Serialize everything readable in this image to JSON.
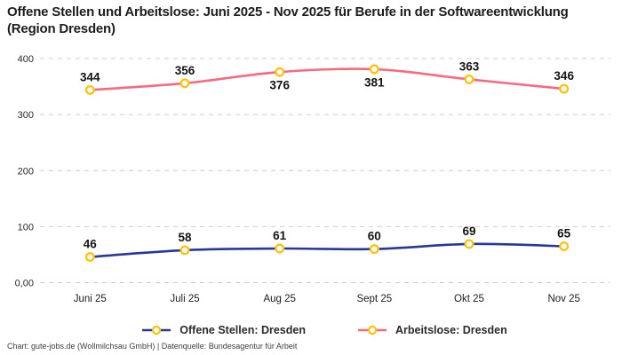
{
  "title": "Offene Stellen und Arbeitslose: Juni 2025 - Nov 2025 für Berufe in der Softwareentwicklung (Region Dresden)",
  "footer": "Chart: gute-jobs.de (Wollmilchsau GmbH) | Datenquelle: Bundesagentur für Arbeit",
  "colors": {
    "background": "#ffffff",
    "title_text": "#1d1d1d",
    "grid": "#cccccc",
    "axis_text": "#2b2b2b",
    "data_label_text": "#141414",
    "marker_stroke": "#fdc30a",
    "marker_fill": "#ffffff",
    "footer_text": "#3e3e3e"
  },
  "chart_data": {
    "type": "line",
    "title": "Offene Stellen und Arbeitslose: Juni 2025 - Nov 2025 für Berufe in der Softwareentwicklung (Region Dresden)",
    "categories": [
      "Juni 25",
      "Juli 25",
      "Aug 25",
      "Sept 25",
      "Okt 25",
      "Nov 25"
    ],
    "series": [
      {
        "name": "Offene Stellen: Dresden",
        "color": "#27379a",
        "values": [
          46,
          58,
          61,
          60,
          69,
          65
        ],
        "label_positions": [
          "above",
          "above",
          "above",
          "above",
          "above",
          "above"
        ]
      },
      {
        "name": "Arbeitslose: Dresden",
        "color": "#f8697f",
        "values": [
          344,
          356,
          376,
          381,
          363,
          346
        ],
        "label_positions": [
          "above",
          "above",
          "below",
          "below",
          "above",
          "above"
        ]
      }
    ],
    "ylim": [
      0,
      400
    ],
    "yticks": [
      {
        "value": 0,
        "label": "0,00"
      },
      {
        "value": 100,
        "label": "100"
      },
      {
        "value": 200,
        "label": "200"
      },
      {
        "value": 300,
        "label": "300"
      },
      {
        "value": 400,
        "label": "400"
      }
    ],
    "grid": "horizontal-dashed",
    "legend_position": "bottom",
    "line_style": "smooth",
    "marker": {
      "shape": "circle",
      "fill": "#ffffff",
      "stroke": "#fdc30a"
    }
  }
}
